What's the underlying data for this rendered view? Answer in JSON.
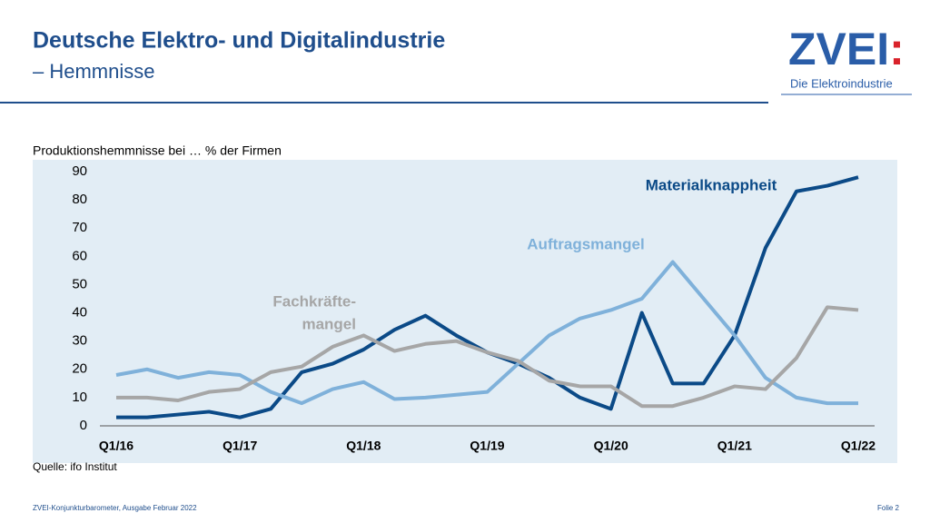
{
  "slide": {
    "title": "Deutsche Elektro- und Digitalindustrie",
    "subtitle": "– Hemmnisse",
    "logo": {
      "name": "ZVEI",
      "mark": ":",
      "tagline": "Die Elektroindustrie"
    },
    "source": "Quelle: ifo Institut",
    "footer": "ZVEI-Konjunkturbarometer, Ausgabe Februar 2022",
    "page": "Folie 2"
  },
  "chart_data": {
    "type": "line",
    "ylabel": "Produktionshemmnisse bei … % der Firmen",
    "categories": [
      "Q1/16",
      null,
      null,
      null,
      "Q1/17",
      null,
      null,
      null,
      "Q1/18",
      null,
      null,
      null,
      "Q1/19",
      null,
      null,
      null,
      "Q1/20",
      null,
      null,
      null,
      "Q1/21",
      null,
      null,
      null,
      "Q1/22"
    ],
    "ylim": [
      0,
      90
    ],
    "yticks": [
      0,
      10,
      20,
      30,
      40,
      50,
      60,
      70,
      80,
      90
    ],
    "grid": false,
    "series": [
      {
        "name": "Materialknappheit",
        "color": "#0b4a87",
        "values": [
          3,
          3,
          4,
          5,
          3,
          6,
          19,
          22,
          27,
          34,
          39,
          32,
          26,
          22,
          17,
          10,
          6,
          40,
          15,
          15,
          32,
          63,
          83,
          85,
          88
        ]
      },
      {
        "name": "Auftragsmangel",
        "color": "#7fb1da",
        "values": [
          18,
          20,
          17,
          19,
          18,
          12,
          8,
          13,
          15.5,
          9.5,
          10,
          11,
          12,
          22,
          32,
          38,
          41,
          45,
          58,
          45,
          32,
          17,
          10,
          8,
          8
        ]
      },
      {
        "name_lines": [
          "Fachkräfte-",
          "mangel"
        ],
        "color": "#a6a6a6",
        "values": [
          10,
          10,
          9,
          12,
          13,
          19,
          21,
          28,
          32,
          26.5,
          29,
          30,
          26,
          23,
          16,
          14,
          14,
          7,
          7,
          10,
          14,
          13,
          24,
          42,
          41
        ]
      }
    ]
  }
}
